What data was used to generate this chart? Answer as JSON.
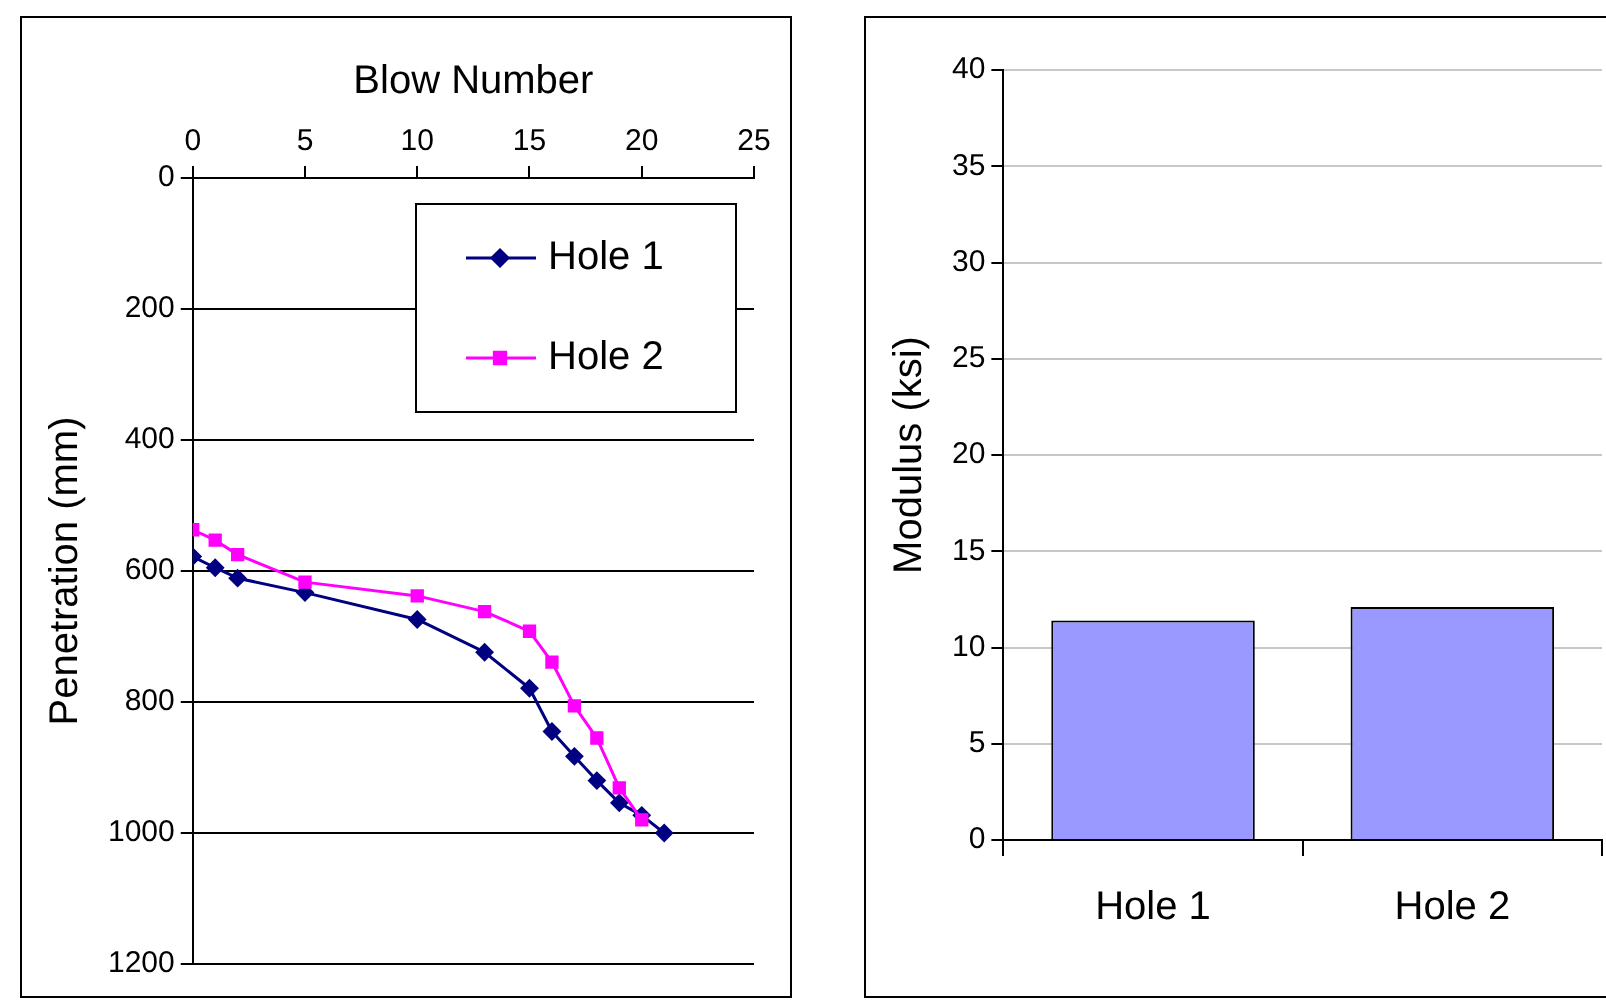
{
  "chart_data": [
    {
      "type": "line",
      "xlabel": "Blow Number",
      "ylabel": "Penetration (mm)",
      "xlim": [
        0,
        25
      ],
      "xticks": [
        0,
        5,
        10,
        15,
        20,
        25
      ],
      "ylim": [
        1200,
        0
      ],
      "yticks": [
        0,
        200,
        400,
        600,
        800,
        1000,
        1200
      ],
      "grid": "y",
      "legend": "top right",
      "series": [
        {
          "name": "Hole 1",
          "color": "#000080",
          "marker": "diamond",
          "x": [
            0,
            1,
            2,
            5,
            10,
            13,
            15,
            16,
            17,
            18,
            19,
            20,
            21
          ],
          "values": [
            578,
            595,
            611,
            633,
            674,
            724,
            779,
            845,
            883,
            920,
            954,
            973,
            1000
          ]
        },
        {
          "name": "Hole 2",
          "color": "#ff00ff",
          "marker": "square",
          "x": [
            0,
            1,
            2,
            5,
            10,
            13,
            15,
            16,
            17,
            18,
            19,
            20
          ],
          "values": [
            537,
            553,
            575,
            617,
            638,
            662,
            692,
            739,
            806,
            855,
            931,
            980
          ]
        }
      ]
    },
    {
      "type": "bar",
      "ylabel": "Modulus (ksi)",
      "categories": [
        "Hole 1",
        "Hole 2"
      ],
      "values": [
        11.4,
        12.1
      ],
      "color": "#9999ff",
      "ylim": [
        0,
        40
      ],
      "yticks": [
        0,
        5,
        10,
        15,
        20,
        25,
        30,
        35,
        40
      ],
      "grid": "y"
    }
  ]
}
